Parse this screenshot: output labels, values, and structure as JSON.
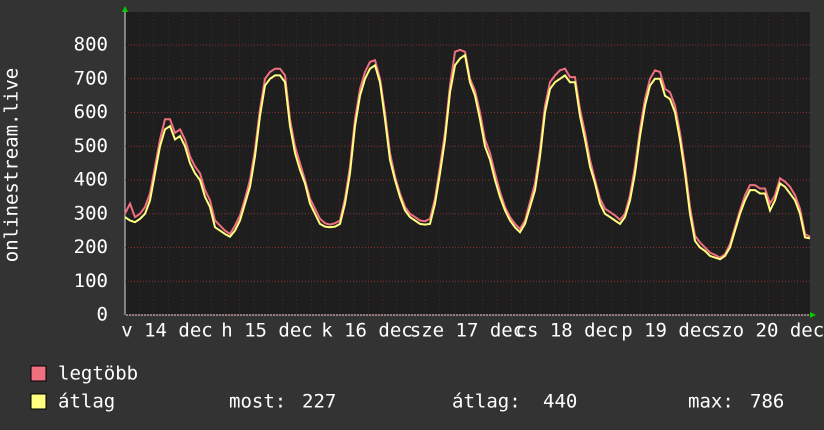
{
  "chart_data": {
    "type": "line",
    "y_label": "onlinestream.live",
    "x_labels": [
      "v 14 dec",
      "h 15 dec",
      "k 16 dec",
      "sze 17 dec",
      "cs 18 dec",
      "p 19 dec",
      "szo 20 dec"
    ],
    "ylim": [
      0,
      889
    ],
    "yticks": [
      0,
      100,
      200,
      300,
      400,
      500,
      600,
      700,
      800
    ],
    "grid": true,
    "series": [
      {
        "name": "legtöbb",
        "color": "#f07080",
        "values": [
          300,
          330,
          290,
          300,
          320,
          360,
          440,
          520,
          580,
          580,
          540,
          550,
          520,
          470,
          440,
          420,
          370,
          340,
          280,
          265,
          250,
          240,
          265,
          295,
          345,
          400,
          490,
          610,
          700,
          720,
          730,
          730,
          710,
          580,
          500,
          450,
          400,
          345,
          315,
          285,
          272,
          268,
          272,
          280,
          345,
          440,
          580,
          670,
          720,
          750,
          755,
          700,
          600,
          480,
          410,
          360,
          320,
          300,
          290,
          280,
          278,
          285,
          345,
          440,
          540,
          680,
          780,
          786,
          780,
          700,
          665,
          600,
          520,
          480,
          420,
          365,
          320,
          290,
          270,
          255,
          280,
          335,
          390,
          490,
          620,
          690,
          710,
          725,
          730,
          705,
          705,
          610,
          540,
          460,
          400,
          345,
          315,
          305,
          295,
          282,
          300,
          355,
          440,
          550,
          640,
          700,
          725,
          720,
          670,
          660,
          620,
          540,
          440,
          320,
          235,
          215,
          200,
          185,
          178,
          170,
          180,
          210,
          260,
          310,
          355,
          385,
          385,
          375,
          375,
          330,
          355,
          405,
          395,
          380,
          355,
          315,
          240,
          232
        ]
      },
      {
        "name": "átlag",
        "color": "#ffff80",
        "values": [
          290,
          280,
          275,
          285,
          300,
          340,
          420,
          500,
          550,
          560,
          520,
          530,
          500,
          450,
          420,
          400,
          350,
          320,
          260,
          250,
          240,
          232,
          250,
          280,
          330,
          380,
          470,
          590,
          680,
          700,
          710,
          710,
          690,
          560,
          480,
          430,
          390,
          330,
          300,
          270,
          262,
          260,
          262,
          270,
          330,
          420,
          560,
          650,
          700,
          730,
          740,
          690,
          580,
          460,
          400,
          350,
          310,
          290,
          280,
          270,
          268,
          270,
          330,
          420,
          520,
          660,
          740,
          760,
          770,
          690,
          650,
          580,
          500,
          460,
          400,
          350,
          310,
          280,
          260,
          245,
          270,
          320,
          370,
          470,
          600,
          670,
          690,
          700,
          710,
          690,
          690,
          590,
          520,
          440,
          390,
          330,
          300,
          290,
          280,
          270,
          290,
          340,
          420,
          530,
          620,
          680,
          700,
          700,
          650,
          640,
          600,
          520,
          420,
          300,
          220,
          200,
          190,
          175,
          170,
          165,
          175,
          200,
          250,
          300,
          340,
          370,
          370,
          360,
          360,
          310,
          340,
          390,
          380,
          360,
          340,
          300,
          230,
          227
        ]
      }
    ],
    "stats": [
      {
        "label": "most:",
        "value": 227
      },
      {
        "label": "átlag:",
        "value": 440
      },
      {
        "label": "max:",
        "value": 786
      }
    ]
  }
}
